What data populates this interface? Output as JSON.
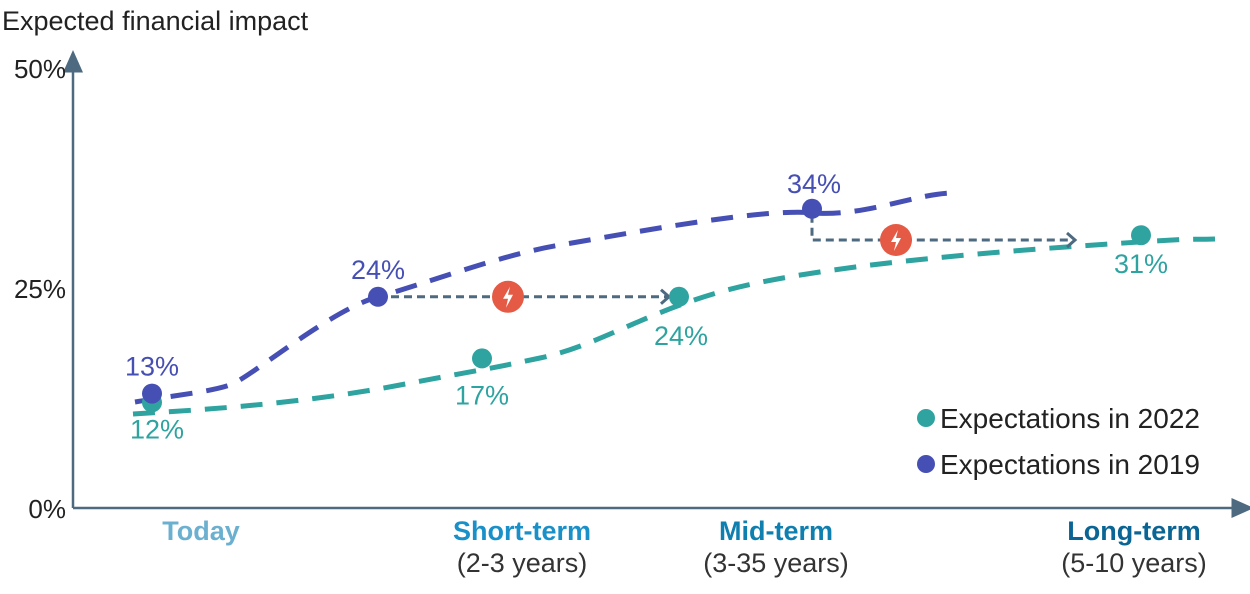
{
  "chart_data": {
    "type": "line",
    "ylabel": "Expected financial impact",
    "ylim": [
      0,
      50
    ],
    "yticks": [
      "0%",
      "25%",
      "50%"
    ],
    "ytick_values": [
      0,
      25,
      50
    ],
    "grid": false,
    "legend_placement": "bottom-right",
    "categories": [
      {
        "label": "Today",
        "sub": "",
        "color": "#6cb0d0"
      },
      {
        "label": "Short-term",
        "sub": "(2-3 years)",
        "color": "#1a90c8"
      },
      {
        "label": "Mid-term",
        "sub": "(3-35 years)",
        "color": "#0f7fb0"
      },
      {
        "label": "Long-term",
        "sub": "(5-10 years)",
        "color": "#0a6494"
      }
    ],
    "series": [
      {
        "name": "Expectations in 2022",
        "color": "#2ea3a0",
        "values": [
          12,
          17,
          24,
          31
        ],
        "labels": [
          "12%",
          "17%",
          "24%",
          "31%"
        ]
      },
      {
        "name": "Expectations in 2019",
        "color": "#464fb3",
        "values": [
          13,
          24,
          34,
          null
        ],
        "labels": [
          "13%",
          "24%",
          "34%",
          ""
        ]
      }
    ],
    "annotations": [
      {
        "type": "shift-arrow",
        "from": "2019 Short-term",
        "to": "2022 Mid-term",
        "icon": "lightning-bolt-icon",
        "color": "#e55a45"
      },
      {
        "type": "shift-arrow",
        "from": "2019 Mid-term",
        "to": "2022 Long-term",
        "icon": "lightning-bolt-icon",
        "color": "#e55a45"
      }
    ],
    "axis_color": "#4d6a80"
  }
}
